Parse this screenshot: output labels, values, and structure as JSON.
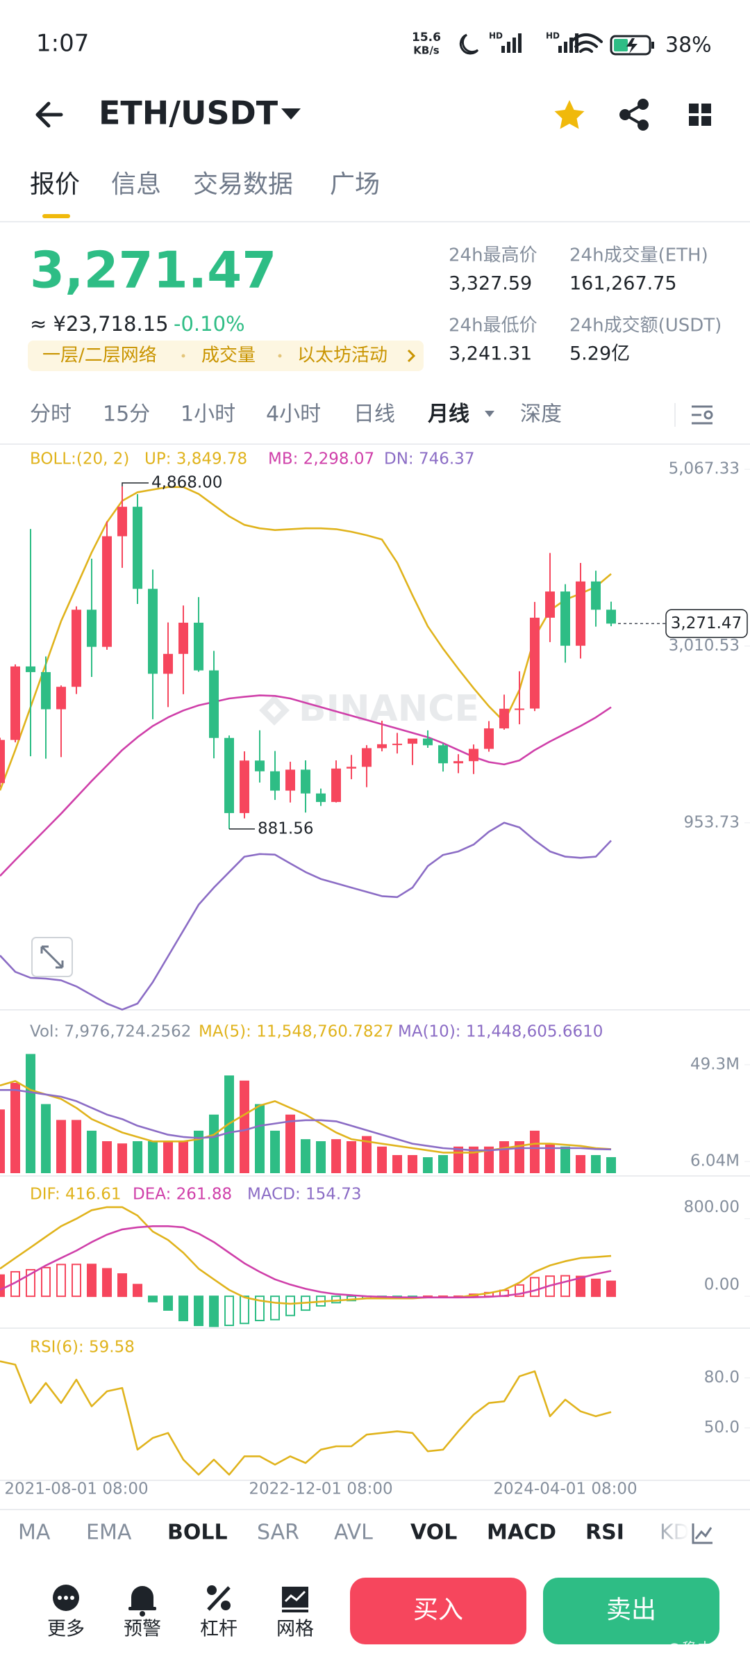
{
  "status_bar": {
    "time": "1:07",
    "net_speed": "15.6",
    "net_unit": "KB/s",
    "signal_1": "HD",
    "signal_2": "HD",
    "battery": "38%"
  },
  "header": {
    "pair": "ETH/USDT"
  },
  "tabs": [
    "报价",
    "信息",
    "交易数据",
    "广场"
  ],
  "price": {
    "last": "3,271.47",
    "cny": "≈ ¥23,718.15",
    "change": "-0.10%",
    "tags": [
      "一层/二层网络",
      "成交量",
      "以太坊活动"
    ]
  },
  "stats": [
    {
      "label": "24h最高价",
      "value": "3,327.59"
    },
    {
      "label": "24h成交量(ETH)",
      "value": "161,267.75"
    },
    {
      "label": "24h最低价",
      "value": "3,241.31"
    },
    {
      "label": "24h成交额(USDT)",
      "value": "5.29亿"
    }
  ],
  "intervals": {
    "items": [
      "分时",
      "15分",
      "1小时",
      "4小时",
      "日线",
      "月线",
      "深度"
    ],
    "active": 5
  },
  "chart_data": [
    {
      "type": "candlestick",
      "indicator": "BOLL:(20, 2)",
      "watermark": "BINANCE",
      "up_color": "#f6465d",
      "down_color": "#2ebd85",
      "categories": [
        null,
        null,
        null,
        null,
        null,
        "2021-08-01 08:00",
        null,
        null,
        null,
        null,
        null,
        null,
        null,
        null,
        null,
        null,
        null,
        null,
        null,
        null,
        null,
        "2022-12-01 08:00",
        null,
        null,
        null,
        null,
        null,
        null,
        null,
        null,
        null,
        null,
        null,
        null,
        null,
        null,
        null,
        "2024-04-01 08:00",
        null,
        null,
        null
      ],
      "open": [
        1416,
        1918,
        2773,
        2707,
        2275,
        2536,
        3433,
        3001,
        4288,
        4631,
        3676,
        2688,
        2919,
        3282,
        2727,
        1941,
        1067,
        1678,
        1553,
        1328,
        1572,
        1295,
        1196,
        1585,
        1605,
        1822,
        1868,
        1874,
        1934,
        1856,
        1646,
        1671,
        1814,
        2052,
        2281,
        2283,
        3340,
        3645,
        3014,
        3762,
        3433
      ],
      "high": [
        1943,
        2797,
        4372,
        2890,
        2552,
        3472,
        4027,
        4460,
        4868,
        4778,
        3900,
        3285,
        3482,
        3580,
        2954,
        1970,
        1785,
        2030,
        1789,
        1664,
        1680,
        1352,
        1680,
        1743,
        1857,
        2141,
        2000,
        1931,
        2029,
        1877,
        1752,
        1865,
        2137,
        2445,
        2717,
        3523,
        4093,
        3730,
        3977,
        3887,
        3527
      ],
      "low": [
        1370,
        1890,
        1728,
        1700,
        1718,
        2452,
        2651,
        2967,
        3920,
        3500,
        2159,
        2300,
        2450,
        2711,
        1704,
        881.56,
        1005,
        1422,
        1220,
        1190,
        1073,
        1150,
        1190,
        1461,
        1368,
        1785,
        1760,
        1626,
        1826,
        1550,
        1531,
        1521,
        1781,
        2037,
        2100,
        2254,
        3056,
        2817,
        2865,
        3236,
        3241
      ],
      "close": [
        1918,
        2773,
        2707,
        2275,
        2536,
        3433,
        3001,
        4288,
        4631,
        3676,
        2688,
        2919,
        3282,
        2727,
        1941,
        1067,
        1678,
        1553,
        1328,
        1572,
        1295,
        1196,
        1585,
        1605,
        1822,
        1868,
        1874,
        1934,
        1856,
        1646,
        1671,
        1814,
        2052,
        2281,
        2283,
        3340,
        3645,
        3014,
        3762,
        3433,
        3271.47
      ],
      "max_label": "4,868.00",
      "min_label": "881.56",
      "series": [
        {
          "name": "UP: 3,849.78",
          "color": "#e0b31c",
          "values": [
            1330,
            1800,
            2300,
            2800,
            3300,
            3700,
            4100,
            4450,
            4700,
            4800,
            4830,
            4860,
            4860,
            4780,
            4650,
            4520,
            4420,
            4380,
            4360,
            4370,
            4380,
            4380,
            4370,
            4340,
            4300,
            4250,
            3980,
            3600,
            3240,
            2980,
            2745,
            2520,
            2310,
            2130,
            2500,
            3115,
            3425,
            3550,
            3620,
            3700,
            3849.78
          ]
        },
        {
          "name": "MB: 2,298.07",
          "color": "#cf3fa9",
          "values": [
            335,
            520,
            700,
            880,
            1060,
            1250,
            1440,
            1620,
            1800,
            1950,
            2080,
            2180,
            2260,
            2320,
            2360,
            2400,
            2420,
            2436,
            2430,
            2400,
            2350,
            2300,
            2250,
            2200,
            2150,
            2100,
            2050,
            2000,
            1950,
            1880,
            1800,
            1720,
            1660,
            1633,
            1680,
            1800,
            1900,
            1990,
            2080,
            2180,
            2298.07
          ]
        },
        {
          "name": "DN: 746.37",
          "color": "#8b6cc5",
          "values": [
            -590,
            -780,
            -850,
            -860,
            -880,
            -950,
            -1050,
            -1150,
            -1220,
            -1150,
            -900,
            -600,
            -300,
            0,
            200,
            380,
            560,
            590,
            583,
            480,
            380,
            300,
            250,
            200,
            150,
            100,
            89,
            200,
            450,
            580,
            620,
            700,
            850,
            954,
            900,
            750,
            620,
            560,
            546,
            560,
            746.37
          ]
        }
      ],
      "ylim": [
        -1230,
        5067.33
      ],
      "yticks": [
        {
          "value": 5067.33,
          "label": "5,067.33"
        },
        {
          "value": 3010.53,
          "label": "3,010.53"
        },
        {
          "value": 953.73,
          "label": "953.73"
        }
      ]
    },
    {
      "type": "volume",
      "series": [
        {
          "name": "Vol: 7,976,724.2562",
          "style": "bar",
          "values": [
            29300000,
            41200000,
            54100000,
            31700000,
            24600000,
            24600000,
            19800000,
            15100000,
            14100000,
            15100000,
            15100000,
            15100000,
            15100000,
            19800000,
            27000000,
            44500000,
            42200000,
            31700000,
            19800000,
            27000000,
            16000000,
            15100000,
            16000000,
            15100000,
            17400000,
            12700000,
            8900000,
            8900000,
            7940000,
            8900000,
            12700000,
            12700000,
            12700000,
            15100000,
            15100000,
            19800000,
            13600000,
            12700000,
            8900000,
            8900000,
            7976724.2562
          ]
        },
        {
          "name": "MA(5): 11,548,760.7827",
          "color": "#e0b31c",
          "values": [
            40000000,
            42000000,
            38000000,
            36000000,
            34000000,
            30000000,
            25000000,
            22000000,
            19000000,
            17000000,
            15000000,
            15000000,
            15000000,
            16000000,
            18000000,
            23000000,
            27000000,
            31000000,
            33000000,
            30000000,
            27000000,
            23000000,
            19000000,
            16000000,
            15000000,
            14000000,
            13000000,
            12000000,
            11000000,
            10000000,
            10000000,
            10000000,
            11000000,
            12000000,
            13000000,
            14000000,
            14000000,
            13500000,
            13000000,
            12000000,
            11548760.7827
          ]
        },
        {
          "name": "MA(10): 11,448,605.6610",
          "color": "#8b6cc5",
          "values": [
            38000000,
            38000000,
            37000000,
            36000000,
            35000000,
            33000000,
            30000000,
            27000000,
            25000000,
            22000000,
            20000000,
            18000000,
            17000000,
            16500000,
            17000000,
            19000000,
            20000000,
            22000000,
            23000000,
            24000000,
            24500000,
            24500000,
            24000000,
            22000000,
            20000000,
            18000000,
            16000000,
            14000000,
            13000000,
            12000000,
            11500000,
            11000000,
            11000000,
            11500000,
            12000000,
            12000000,
            12000000,
            12000000,
            12000000,
            11600000,
            11448605.661
          ]
        }
      ],
      "ylim": [
        810000,
        55500000
      ],
      "yticks": [
        {
          "value": 49300000,
          "label": "49.3M"
        },
        {
          "value": 6040000,
          "label": "6.04M"
        }
      ]
    },
    {
      "type": "macd",
      "series": [
        {
          "name": "DIF: 416.61",
          "color": "#e0b31c",
          "values": [
            285,
            395,
            504,
            614,
            723,
            800,
            888,
            920,
            920,
            833,
            668,
            581,
            449,
            285,
            175,
            66,
            -11,
            -44,
            -66,
            -77,
            -66,
            -55,
            -44,
            -33,
            -22,
            -22,
            -22,
            -22,
            -11,
            -11,
            -11,
            11,
            33,
            66,
            142,
            252,
            318,
            362,
            395,
            405,
            416.61
          ]
        },
        {
          "name": "DEA: 261.88",
          "color": "#cf3fa9",
          "values": [
            66,
            142,
            230,
            318,
            395,
            471,
            559,
            636,
            690,
            712,
            723,
            723,
            712,
            647,
            559,
            449,
            340,
            252,
            175,
            121,
            77,
            44,
            22,
            11,
            0,
            -5,
            -10,
            -12,
            -12,
            -12,
            -12,
            -10,
            -5,
            5,
            25,
            60,
            110,
            150,
            190,
            230,
            261.88
          ]
        },
        {
          "name": "MACD: 154.73",
          "color": "#8b6cc5",
          "style": "histogram",
          "values": [
            219,
            253,
            274,
            296,
            328,
            329,
            329,
            284,
            230,
            121,
            -55,
            -142,
            -250,
            -300,
            -310,
            -300,
            -280,
            -250,
            -241,
            -198,
            -143,
            -99,
            -66,
            -44,
            -22,
            -17,
            -12,
            -10,
            1,
            1,
            1,
            21,
            38,
            61,
            117,
            192,
            208,
            212,
            205,
            175,
            154.73
          ]
        }
      ],
      "ylim": [
        -318,
        1216
      ],
      "yticks": [
        {
          "value": 800,
          "label": "800.00"
        },
        {
          "value": 0,
          "label": "0.00"
        }
      ]
    },
    {
      "type": "line",
      "series": [
        {
          "name": "RSI(6): 59.58",
          "color": "#e0b31c",
          "values": [
            90,
            88,
            65,
            77,
            65,
            79,
            63,
            72,
            74,
            37,
            44,
            47,
            31,
            22,
            31,
            22,
            33,
            33,
            28,
            33,
            29,
            37,
            39,
            39,
            46,
            47,
            48,
            47,
            36,
            37,
            48,
            58,
            65,
            66,
            81,
            84,
            57,
            67,
            60,
            57,
            59.58
          ]
        }
      ],
      "ylim": [
        19.4,
        107.4
      ],
      "yticks": [
        {
          "value": 80,
          "label": "80.0"
        },
        {
          "value": 50,
          "label": "50.0"
        }
      ]
    }
  ],
  "indicator_tabs": {
    "items": [
      "MA",
      "EMA",
      "BOLL",
      "SAR",
      "AVL",
      "VOL",
      "MACD",
      "RSI",
      "KD"
    ],
    "active": [
      2,
      5,
      6,
      7
    ]
  },
  "toolbar": [
    "更多",
    "预警",
    "杠杆",
    "网格"
  ],
  "actions": {
    "buy": "买入",
    "sell": "卖出"
  },
  "watermark": "@稳中有进"
}
